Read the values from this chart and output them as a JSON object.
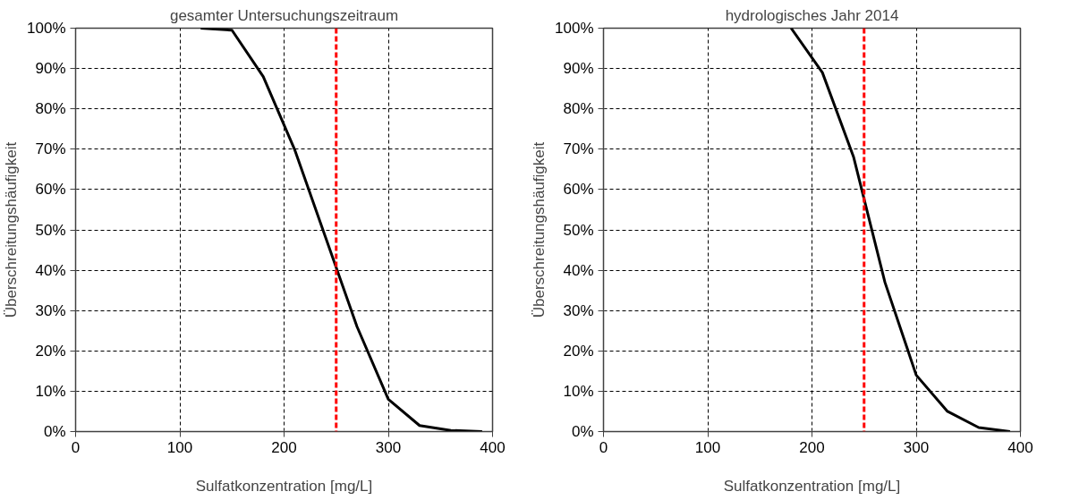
{
  "chart_data": [
    {
      "type": "line",
      "title": "gesamter Untersuchungszeitraum",
      "xlabel": "Sulfatkonzentration [mg/L]",
      "ylabel": "Überschreitungshäufigkeit",
      "x": [
        120,
        150,
        180,
        210,
        240,
        270,
        300,
        330,
        360,
        390
      ],
      "series": [
        {
          "color": "#000000",
          "values": [
            100,
            99.5,
            88,
            70,
            48,
            26,
            8,
            1.5,
            0.3,
            0
          ]
        }
      ],
      "xlim": [
        0,
        400
      ],
      "xticks": [
        0,
        100,
        200,
        300,
        400
      ],
      "ylim": [
        0,
        100
      ],
      "yticks": [
        {
          "value": 0,
          "label": "0%"
        },
        {
          "value": 10,
          "label": "10%"
        },
        {
          "value": 20,
          "label": "20%"
        },
        {
          "value": 30,
          "label": "30%"
        },
        {
          "value": 40,
          "label": "40%"
        },
        {
          "value": 50,
          "label": "50%"
        },
        {
          "value": 60,
          "label": "60%"
        },
        {
          "value": 70,
          "label": "70%"
        },
        {
          "value": 80,
          "label": "80%"
        },
        {
          "value": 90,
          "label": "90%"
        },
        {
          "value": 100,
          "label": "100%"
        }
      ],
      "ref_lines": [
        {
          "axis": "x",
          "value": 250,
          "color": "#ff0000",
          "line_style": "dashed"
        }
      ],
      "grid": true,
      "marker": "none",
      "line_style": "solid"
    },
    {
      "type": "line",
      "title": "hydrologisches Jahr 2014",
      "xlabel": "Sulfatkonzentration [mg/L]",
      "ylabel": "Überschreitungshäufigkeit",
      "x": [
        180,
        210,
        240,
        270,
        300,
        330,
        360,
        390
      ],
      "series": [
        {
          "color": "#000000",
          "values": [
            100,
            89,
            68,
            37,
            14,
            5,
            1,
            0
          ]
        }
      ],
      "xlim": [
        0,
        400
      ],
      "xticks": [
        0,
        100,
        200,
        300,
        400
      ],
      "ylim": [
        0,
        100
      ],
      "yticks": [
        {
          "value": 0,
          "label": "0%"
        },
        {
          "value": 10,
          "label": "10%"
        },
        {
          "value": 20,
          "label": "20%"
        },
        {
          "value": 30,
          "label": "30%"
        },
        {
          "value": 40,
          "label": "40%"
        },
        {
          "value": 50,
          "label": "50%"
        },
        {
          "value": 60,
          "label": "60%"
        },
        {
          "value": 70,
          "label": "70%"
        },
        {
          "value": 80,
          "label": "80%"
        },
        {
          "value": 90,
          "label": "90%"
        },
        {
          "value": 100,
          "label": "100%"
        }
      ],
      "ref_lines": [
        {
          "axis": "x",
          "value": 250,
          "color": "#ff0000",
          "line_style": "dashed"
        }
      ],
      "grid": true,
      "marker": "none",
      "line_style": "solid"
    }
  ]
}
